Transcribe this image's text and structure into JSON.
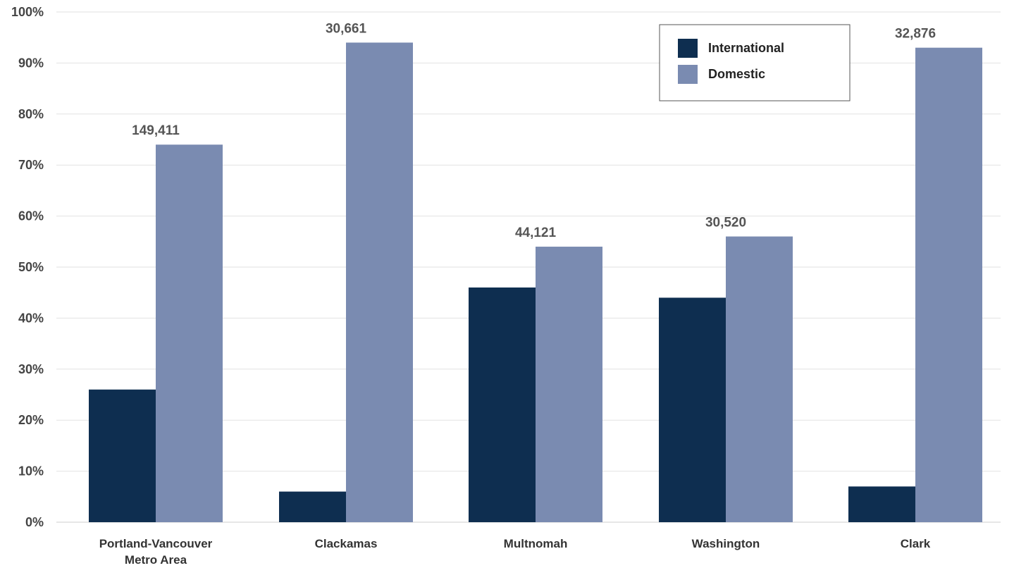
{
  "chart_data": {
    "type": "bar",
    "categories": [
      [
        "Portland-Vancouver",
        "Metro Area"
      ],
      [
        "Clackamas"
      ],
      [
        "Multnomah"
      ],
      [
        "Washington"
      ],
      [
        "Clark"
      ]
    ],
    "series": [
      {
        "name": "International",
        "color": "#0e2e50",
        "values": [
          26,
          6,
          46,
          44,
          7
        ]
      },
      {
        "name": "Domestic",
        "color": "#7a8bb1",
        "values": [
          74,
          94,
          54,
          56,
          93
        ]
      }
    ],
    "data_labels": [
      "149,411",
      "30,661",
      "44,121",
      "30,520",
      "32,876"
    ],
    "data_labels_on_series": "Domestic",
    "ylim": [
      0,
      100
    ],
    "yticks": [
      0,
      10,
      20,
      30,
      40,
      50,
      60,
      70,
      80,
      90,
      100
    ],
    "ytick_labels": [
      "0%",
      "10%",
      "20%",
      "30%",
      "40%",
      "50%",
      "60%",
      "70%",
      "80%",
      "90%",
      "100%"
    ],
    "grid": true,
    "legend_position": "top-right",
    "title": "",
    "xlabel": "",
    "ylabel": ""
  }
}
